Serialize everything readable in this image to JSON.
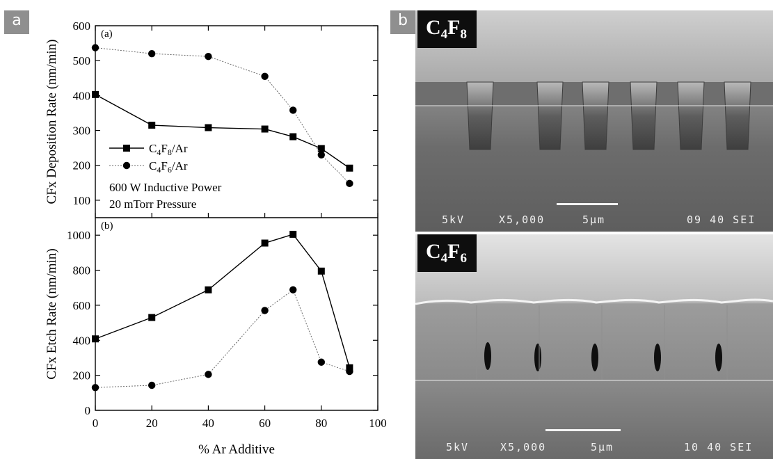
{
  "panel_a": {
    "tag": "a"
  },
  "panel_b": {
    "tag": "b"
  },
  "chart_data": [
    {
      "type": "line",
      "panel_label": "(a)",
      "x": [
        0,
        20,
        40,
        60,
        70,
        80,
        90
      ],
      "ylabel": "CFx Deposition Rate (nm/min)",
      "ylim": [
        50,
        600
      ],
      "yticks": [
        100,
        200,
        300,
        400,
        500,
        600
      ],
      "grid": false,
      "legend_position": "center-left",
      "series": [
        {
          "name": "C4F8/Ar",
          "name_base": "C",
          "name_sub1": "4",
          "name_mid": "F",
          "name_sub2": "8",
          "name_tail": "/Ar",
          "marker": "square",
          "values": [
            403,
            315,
            308,
            304,
            282,
            248,
            192
          ]
        },
        {
          "name": "C4F6/Ar",
          "name_base": "C",
          "name_sub1": "4",
          "name_mid": "F",
          "name_sub2": "6",
          "name_tail": "/Ar",
          "marker": "circle",
          "values": [
            537,
            520,
            512,
            455,
            358,
            230,
            148
          ]
        }
      ],
      "annotations": [
        "600 W Inductive Power",
        "20 mTorr Pressure"
      ]
    },
    {
      "type": "line",
      "panel_label": "(b)",
      "x": [
        0,
        20,
        40,
        60,
        70,
        80,
        90
      ],
      "xlabel": "% Ar Additive",
      "xlim": [
        0,
        100
      ],
      "xticks": [
        0,
        20,
        40,
        60,
        80,
        100
      ],
      "ylabel": "CFx Etch Rate (nm/min)",
      "ylim": [
        0,
        1100
      ],
      "yticks": [
        0,
        200,
        400,
        600,
        800,
        1000
      ],
      "grid": false,
      "series": [
        {
          "name": "C4F8/Ar",
          "marker": "square",
          "values": [
            408,
            530,
            688,
            955,
            1005,
            795,
            243
          ]
        },
        {
          "name": "C4F6/Ar",
          "marker": "circle",
          "values": [
            130,
            143,
            205,
            570,
            688,
            275,
            222
          ]
        }
      ]
    }
  ],
  "sem_top": {
    "label_base": "C",
    "label_sub1": "4",
    "label_mid": "F",
    "label_sub2": "8",
    "voltage": "5kV",
    "magnification": "X5,000",
    "scale": "5µm",
    "frame_info": "09 40 SEI"
  },
  "sem_bottom": {
    "label_base": "C",
    "label_sub1": "4",
    "label_mid": "F",
    "label_sub2": "6",
    "voltage": "5kV",
    "magnification": "X5,000",
    "scale": "5µm",
    "frame_info": "10 40 SEI"
  }
}
